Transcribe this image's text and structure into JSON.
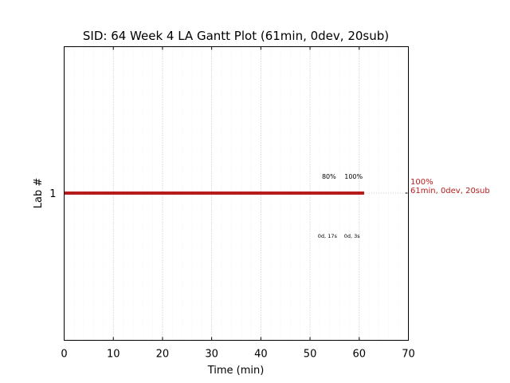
{
  "chart_data": {
    "type": "bar",
    "title": "SID: 64 Week 4 LA Gantt Plot (61min, 0dev, 20sub)",
    "xlabel": "Time (min)",
    "ylabel": "Lab #",
    "xlim": [
      0,
      70
    ],
    "x_ticks": [
      0,
      10,
      20,
      30,
      40,
      50,
      60,
      70
    ],
    "x_minor_step": 2,
    "grid": true,
    "categories": [
      "1"
    ],
    "series": [
      {
        "lab": "1",
        "start": 0,
        "end": 61,
        "color": "#b71c1c"
      }
    ],
    "milestones": [
      {
        "x": 54.5,
        "pct_label": "80%",
        "time_label": "0d, 17s"
      },
      {
        "x": 59.5,
        "pct_label": "100%",
        "time_label": "0d, 3s"
      }
    ],
    "end_annotation": {
      "line1": "100%",
      "line2": "61min, 0dev, 20sub",
      "color": "#b71c1c"
    }
  }
}
